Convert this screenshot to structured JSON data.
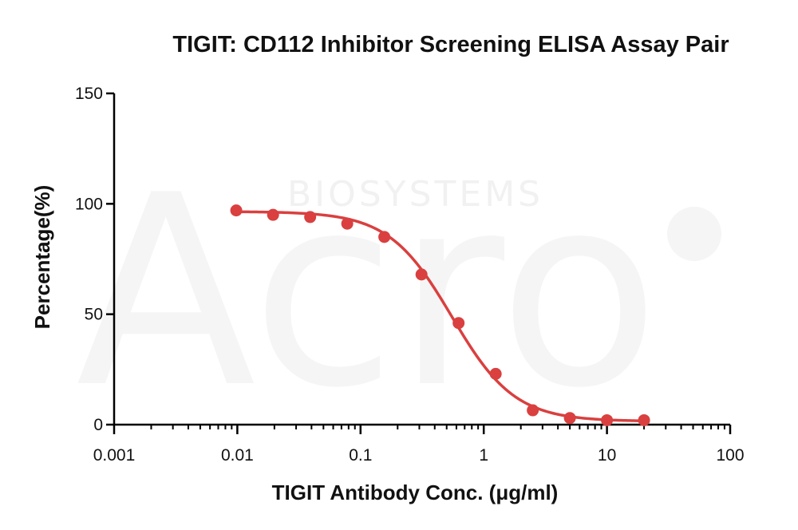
{
  "watermark": {
    "logo_text": "Acro",
    "sub_text": "BIOSYSTEMS"
  },
  "chart_data": {
    "type": "scatter",
    "title": "TIGIT: CD112 Inhibitor Screening ELISA Assay Pair",
    "xlabel": "TIGIT Antibody Conc. (μg/ml)",
    "ylabel": "Percentage(%)",
    "xscale": "log",
    "xlim": [
      0.001,
      100
    ],
    "ylim": [
      0,
      150
    ],
    "x_ticks": [
      0.001,
      0.01,
      0.1,
      1,
      10,
      100
    ],
    "x_tick_labels": [
      "0.001",
      "0.01",
      "0.1",
      "1",
      "10",
      "100"
    ],
    "y_ticks": [
      0,
      50,
      100,
      150
    ],
    "y_tick_labels": [
      "0",
      "50",
      "100",
      "150"
    ],
    "grid": false,
    "color": "#d9403f",
    "series": [
      {
        "x": [
          0.0098,
          0.0195,
          0.039,
          0.078,
          0.156,
          0.3125,
          0.625,
          1.25,
          2.5,
          5,
          10,
          20
        ],
        "y": [
          97,
          95,
          94,
          91,
          85,
          68,
          46,
          23,
          6.5,
          3,
          2,
          2
        ],
        "fit": {
          "top": 96.5,
          "bottom": 1.5,
          "ic50": 0.55,
          "hill": 1.7
        }
      }
    ]
  }
}
